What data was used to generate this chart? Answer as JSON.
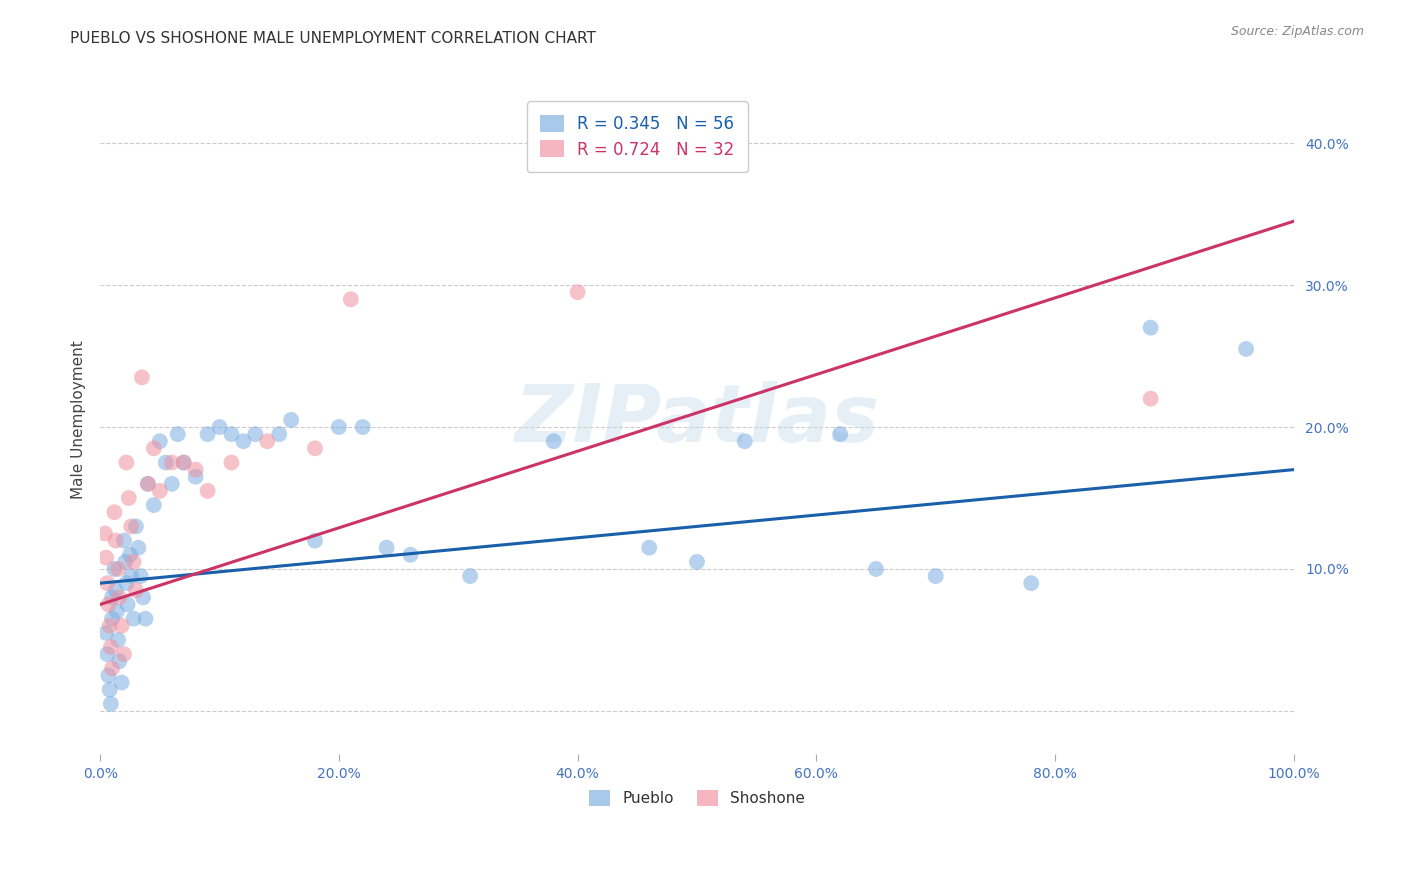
{
  "title": "PUEBLO VS SHOSHONE MALE UNEMPLOYMENT CORRELATION CHART",
  "source": "Source: ZipAtlas.com",
  "tick_color": "#4472c4",
  "ylabel": "Male Unemployment",
  "xlim": [
    0,
    1.0
  ],
  "ylim": [
    -0.03,
    0.44
  ],
  "xticks": [
    0.0,
    0.2,
    0.4,
    0.6,
    0.8,
    1.0
  ],
  "yticks": [
    0.0,
    0.1,
    0.2,
    0.3,
    0.4
  ],
  "ytick_labels": [
    "",
    "10.0%",
    "20.0%",
    "30.0%",
    "40.0%"
  ],
  "xtick_labels": [
    "0.0%",
    "20.0%",
    "40.0%",
    "60.0%",
    "80.0%",
    "100.0%"
  ],
  "background_color": "#ffffff",
  "watermark": "ZIPatlas",
  "legend_pueblo_r": "R = 0.345",
  "legend_pueblo_n": "N = 56",
  "legend_shoshone_r": "R = 0.724",
  "legend_shoshone_n": "N = 32",
  "pueblo_color": "#7aade0",
  "shoshone_color": "#f090a0",
  "pueblo_line_color": "#1a5faa",
  "shoshone_line_color": "#cc3366",
  "pueblo_points_x": [
    0.005,
    0.006,
    0.007,
    0.008,
    0.009,
    0.01,
    0.01,
    0.012,
    0.013,
    0.014,
    0.015,
    0.016,
    0.018,
    0.02,
    0.021,
    0.022,
    0.023,
    0.025,
    0.026,
    0.028,
    0.03,
    0.032,
    0.034,
    0.036,
    0.038,
    0.04,
    0.045,
    0.05,
    0.055,
    0.06,
    0.065,
    0.07,
    0.08,
    0.09,
    0.1,
    0.11,
    0.12,
    0.13,
    0.15,
    0.16,
    0.18,
    0.2,
    0.22,
    0.24,
    0.26,
    0.31,
    0.38,
    0.46,
    0.5,
    0.54,
    0.62,
    0.65,
    0.7,
    0.78,
    0.88,
    0.96
  ],
  "pueblo_points_y": [
    0.055,
    0.04,
    0.025,
    0.015,
    0.005,
    0.08,
    0.065,
    0.1,
    0.085,
    0.07,
    0.05,
    0.035,
    0.02,
    0.12,
    0.105,
    0.09,
    0.075,
    0.11,
    0.095,
    0.065,
    0.13,
    0.115,
    0.095,
    0.08,
    0.065,
    0.16,
    0.145,
    0.19,
    0.175,
    0.16,
    0.195,
    0.175,
    0.165,
    0.195,
    0.2,
    0.195,
    0.19,
    0.195,
    0.195,
    0.205,
    0.12,
    0.2,
    0.2,
    0.115,
    0.11,
    0.095,
    0.19,
    0.115,
    0.105,
    0.19,
    0.195,
    0.1,
    0.095,
    0.09,
    0.27,
    0.255
  ],
  "shoshone_points_x": [
    0.004,
    0.005,
    0.006,
    0.007,
    0.008,
    0.009,
    0.01,
    0.012,
    0.013,
    0.015,
    0.016,
    0.018,
    0.02,
    0.022,
    0.024,
    0.026,
    0.028,
    0.03,
    0.035,
    0.04,
    0.045,
    0.05,
    0.06,
    0.07,
    0.08,
    0.09,
    0.11,
    0.14,
    0.18,
    0.21,
    0.4,
    0.88
  ],
  "shoshone_points_y": [
    0.125,
    0.108,
    0.09,
    0.075,
    0.06,
    0.045,
    0.03,
    0.14,
    0.12,
    0.1,
    0.08,
    0.06,
    0.04,
    0.175,
    0.15,
    0.13,
    0.105,
    0.085,
    0.235,
    0.16,
    0.185,
    0.155,
    0.175,
    0.175,
    0.17,
    0.155,
    0.175,
    0.19,
    0.185,
    0.29,
    0.295,
    0.22
  ],
  "pueblo_regression_slope": 0.08,
  "pueblo_regression_intercept": 0.09,
  "shoshone_regression_slope": 0.27,
  "shoshone_regression_intercept": 0.075,
  "grid_color": "#cccccc",
  "grid_linestyle": "--",
  "title_fontsize": 11,
  "axis_label_fontsize": 11,
  "tick_fontsize": 10,
  "marker_size": 130
}
